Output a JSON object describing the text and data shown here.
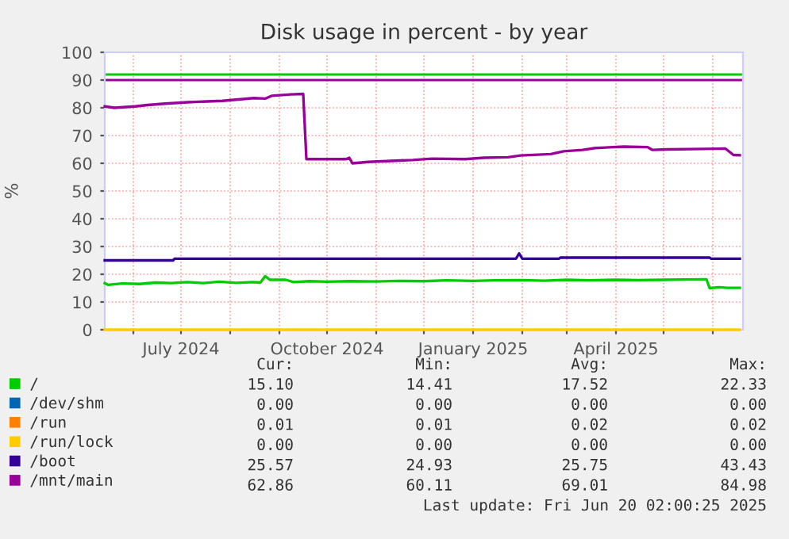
{
  "chart_data": {
    "type": "line",
    "title": "Disk usage in percent - by year",
    "ylabel": "%",
    "xlim": [
      "2024-05-14",
      "2025-06-20"
    ],
    "ylim": [
      0,
      100
    ],
    "yticks": [
      0,
      10,
      20,
      30,
      40,
      50,
      60,
      70,
      80,
      90,
      100
    ],
    "xticks": [
      {
        "value": "2024-06-01",
        "label": null
      },
      {
        "value": "2024-07-01",
        "label": "July 2024"
      },
      {
        "value": "2024-08-01",
        "label": null
      },
      {
        "value": "2024-09-01",
        "label": null
      },
      {
        "value": "2024-10-01",
        "label": "October 2024"
      },
      {
        "value": "2024-11-01",
        "label": null
      },
      {
        "value": "2024-12-01",
        "label": null
      },
      {
        "value": "2025-01-01",
        "label": "January 2025"
      },
      {
        "value": "2025-02-01",
        "label": null
      },
      {
        "value": "2025-03-01",
        "label": null
      },
      {
        "value": "2025-04-01",
        "label": "April 2025"
      },
      {
        "value": "2025-05-01",
        "label": null
      },
      {
        "value": "2025-06-01",
        "label": null
      }
    ],
    "grid": true,
    "legend": "bottom",
    "marker": "none",
    "line_style": "solid",
    "ref_lines": [
      {
        "axis": "y",
        "value": 92,
        "color": "#00cc00"
      },
      {
        "axis": "y",
        "value": 90,
        "color": "#990099"
      }
    ],
    "series": [
      {
        "name": "/",
        "color": "#00cc00",
        "x": [
          "2024-05-14",
          "2024-05-16",
          "2024-05-25",
          "2024-06-05",
          "2024-06-15",
          "2024-06-25",
          "2024-07-05",
          "2024-07-15",
          "2024-07-25",
          "2024-08-05",
          "2024-08-15",
          "2024-08-20",
          "2024-08-23",
          "2024-08-26",
          "2024-09-05",
          "2024-09-10",
          "2024-09-20",
          "2024-10-01",
          "2024-10-15",
          "2024-11-01",
          "2024-11-15",
          "2024-12-01",
          "2024-12-15",
          "2025-01-01",
          "2025-01-15",
          "2025-02-01",
          "2025-02-15",
          "2025-03-01",
          "2025-03-15",
          "2025-04-01",
          "2025-04-15",
          "2025-05-01",
          "2025-05-15",
          "2025-05-28",
          "2025-05-30",
          "2025-06-05",
          "2025-06-10",
          "2025-06-18"
        ],
        "values": [
          16.8,
          16.2,
          16.7,
          16.5,
          17,
          16.8,
          17.2,
          16.8,
          17.3,
          16.9,
          17.2,
          17,
          19.3,
          18,
          18,
          17.2,
          17.5,
          17.3,
          17.5,
          17.4,
          17.6,
          17.5,
          17.8,
          17.6,
          17.8,
          17.9,
          17.7,
          18,
          17.8,
          18,
          17.9,
          18,
          18.1,
          18.2,
          15,
          15.3,
          15.1,
          15.1
        ]
      },
      {
        "name": "/dev/shm",
        "color": "#0066b3"
      },
      {
        "name": "/run",
        "color": "#ff8000"
      },
      {
        "name": "/run/lock",
        "color": "#ffcc00",
        "x": [
          "2024-05-14",
          "2025-06-18"
        ],
        "values": [
          0,
          0
        ]
      },
      {
        "name": "/boot",
        "color": "#330099",
        "x": [
          "2024-05-14",
          "2024-06-26",
          "2024-06-27",
          "2025-01-28",
          "2025-01-30",
          "2025-02-01",
          "2025-02-24",
          "2025-02-25",
          "2025-05-30",
          "2025-05-31",
          "2025-06-18"
        ],
        "values": [
          25,
          25,
          25.6,
          25.6,
          27.5,
          25.6,
          25.6,
          26,
          26,
          25.6,
          25.6
        ]
      },
      {
        "name": "/mnt/main",
        "color": "#990099",
        "x": [
          "2024-05-14",
          "2024-05-20",
          "2024-06-02",
          "2024-06-10",
          "2024-06-21",
          "2024-07-05",
          "2024-07-27",
          "2024-08-06",
          "2024-08-16",
          "2024-08-23",
          "2024-08-27",
          "2024-09-08",
          "2024-09-16",
          "2024-09-18",
          "2024-10-13",
          "2024-10-15",
          "2024-10-17",
          "2024-10-27",
          "2024-11-24",
          "2024-12-06",
          "2024-12-27",
          "2025-01-08",
          "2025-01-23",
          "2025-01-31",
          "2025-02-19",
          "2025-02-27",
          "2025-03-11",
          "2025-03-19",
          "2025-04-06",
          "2025-04-21",
          "2025-04-24",
          "2025-05-03",
          "2025-05-26",
          "2025-06-09",
          "2025-06-14",
          "2025-06-18"
        ],
        "values": [
          80.5,
          80,
          80.5,
          81,
          81.5,
          82,
          82.5,
          83,
          83.5,
          83.3,
          84.3,
          84.8,
          85,
          61.5,
          61.5,
          62,
          60,
          60.5,
          61.2,
          61.7,
          61.5,
          62,
          62.2,
          62.8,
          63.3,
          64.3,
          64.8,
          65.5,
          66,
          65.8,
          64.8,
          65,
          65.2,
          65.3,
          63,
          62.9
        ]
      }
    ],
    "annotations": [
      "Cur:",
      "Min:",
      "Avg:",
      "Max:",
      "15.10",
      "14.41",
      "17.52",
      "22.33",
      "0.00",
      "0.00",
      "0.00",
      "0.00",
      "0.01",
      "0.01",
      "0.02",
      "0.02",
      "0.00",
      "0.00",
      "0.00",
      "0.00",
      "25.57",
      "24.93",
      "25.75",
      "43.43",
      "62.86",
      "60.11",
      "69.01",
      "84.98",
      "Last update: Fri Jun 20 02:00:25 2025"
    ]
  }
}
